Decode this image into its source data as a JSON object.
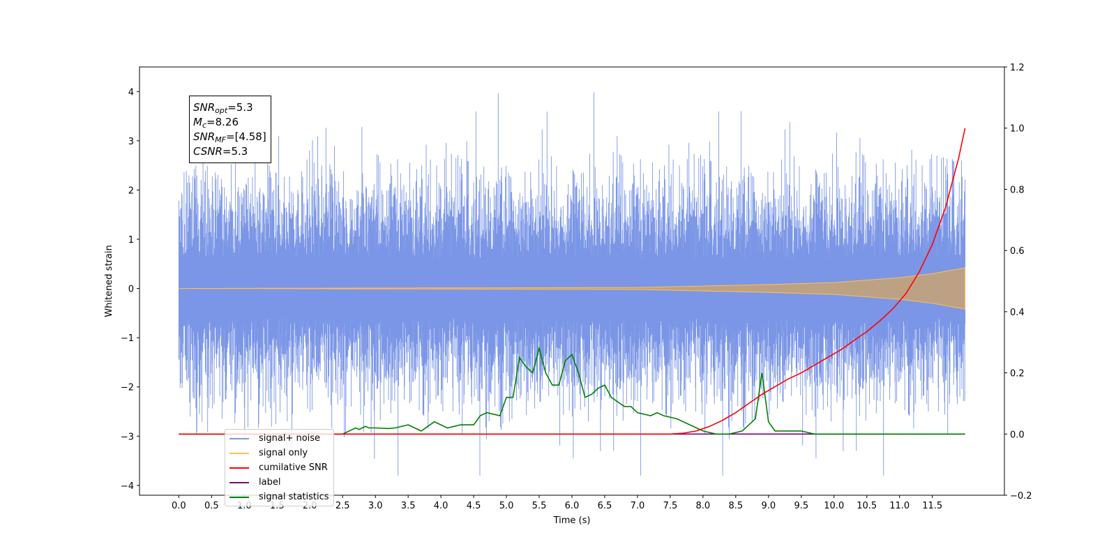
{
  "chart_data": {
    "type": "line",
    "xlabel": "Time (s)",
    "ylabel": "Whitened strain",
    "xlim": [
      -0.6,
      12.6
    ],
    "ylim": [
      -4.2,
      4.5
    ],
    "ylim_right": [
      -0.2,
      1.2
    ],
    "x_ticks": [
      "0.0",
      "0.5",
      "1.0",
      "1.5",
      "2.0",
      "2.5",
      "3.0",
      "3.5",
      "4.0",
      "4.5",
      "5.0",
      "5.5",
      "6.0",
      "6.5",
      "7.0",
      "7.5",
      "8.0",
      "8.5",
      "9.0",
      "9.5",
      "10.0",
      "10.5",
      "11.0",
      "11.5"
    ],
    "y_ticks_left": [
      "−4",
      "−3",
      "−2",
      "−1",
      "0",
      "1",
      "2",
      "3",
      "4"
    ],
    "y_ticks_right": [
      "−0.2",
      "0.0",
      "0.2",
      "0.4",
      "0.6",
      "0.8",
      "1.0",
      "1.2"
    ],
    "annotation_box": [
      {
        "symbol": "SNR",
        "sub": "opt",
        "value": "=5.3"
      },
      {
        "symbol": "M",
        "sub": "c",
        "value": "=8.26"
      },
      {
        "symbol": "SNR",
        "sub": "MF",
        "value": "=[4.58]"
      },
      {
        "symbol": "CSNR",
        "sub": "",
        "value": "=5.3"
      }
    ],
    "legend_position": "lower-left",
    "series": [
      {
        "name": "signal+ noise",
        "axis": "left",
        "color": "#7b96e6",
        "description_envelope_max_left": [
          [
            0.0,
            2.3
          ],
          [
            0.4,
            2.6
          ],
          [
            2.2,
            3.4
          ],
          [
            4.6,
            4.1
          ],
          [
            7.6,
            3.9
          ],
          [
            11.9,
            2.6
          ]
        ],
        "envelope_min": -3.8,
        "typical_std": 0.95,
        "x_range": [
          0.0,
          12.0
        ]
      },
      {
        "name": "signal only",
        "axis": "left",
        "color": "#ffbf55",
        "envelope": [
          [
            0.0,
            0.0
          ],
          [
            7.0,
            0.02
          ],
          [
            8.0,
            0.05
          ],
          [
            9.0,
            0.08
          ],
          [
            10.0,
            0.12
          ],
          [
            11.0,
            0.22
          ],
          [
            11.5,
            0.3
          ],
          [
            12.0,
            0.42
          ]
        ]
      },
      {
        "name": "cumilative SNR",
        "axis": "right",
        "color": "#ff0000",
        "x": [
          0.0,
          7.5,
          7.7,
          7.9,
          8.1,
          8.3,
          8.5,
          8.7,
          8.9,
          9.1,
          9.3,
          9.5,
          9.7,
          9.9,
          10.1,
          10.3,
          10.5,
          10.7,
          10.9,
          11.1,
          11.3,
          11.5,
          11.7,
          11.9,
          12.0
        ],
        "y": [
          0.0,
          0.0,
          0.003,
          0.01,
          0.025,
          0.045,
          0.07,
          0.1,
          0.13,
          0.155,
          0.18,
          0.2,
          0.225,
          0.25,
          0.275,
          0.305,
          0.335,
          0.37,
          0.41,
          0.46,
          0.53,
          0.62,
          0.74,
          0.9,
          1.0
        ]
      },
      {
        "name": "label",
        "axis": "right",
        "color": "#800080",
        "x": [
          0.0,
          12.0
        ],
        "y": [
          0.0,
          0.0
        ]
      },
      {
        "name": "signal statistics",
        "axis": "right",
        "color": "#008000",
        "x": [
          0.0,
          2.5,
          2.7,
          2.75,
          2.85,
          2.9,
          3.0,
          3.2,
          3.3,
          3.5,
          3.7,
          3.9,
          4.0,
          4.1,
          4.3,
          4.5,
          4.6,
          4.7,
          4.8,
          4.9,
          5.0,
          5.1,
          5.2,
          5.3,
          5.4,
          5.5,
          5.6,
          5.7,
          5.8,
          5.9,
          6.0,
          6.1,
          6.2,
          6.3,
          6.4,
          6.5,
          6.6,
          6.8,
          6.9,
          7.0,
          7.2,
          7.3,
          7.4,
          7.6,
          7.8,
          8.0,
          8.2,
          8.4,
          8.6,
          8.8,
          8.9,
          9.0,
          9.1,
          9.3,
          9.5,
          9.7,
          12.0
        ],
        "y": [
          0.0,
          0.0,
          0.02,
          0.015,
          0.025,
          0.02,
          0.02,
          0.018,
          0.02,
          0.03,
          0.01,
          0.04,
          0.03,
          0.02,
          0.03,
          0.03,
          0.06,
          0.07,
          0.065,
          0.06,
          0.12,
          0.12,
          0.25,
          0.22,
          0.2,
          0.28,
          0.2,
          0.16,
          0.16,
          0.24,
          0.26,
          0.2,
          0.12,
          0.13,
          0.15,
          0.16,
          0.12,
          0.09,
          0.09,
          0.07,
          0.06,
          0.07,
          0.06,
          0.05,
          0.03,
          0.01,
          0.0,
          0.0,
          0.01,
          0.05,
          0.2,
          0.04,
          0.01,
          0.01,
          0.01,
          0.0,
          0.0
        ]
      }
    ]
  }
}
